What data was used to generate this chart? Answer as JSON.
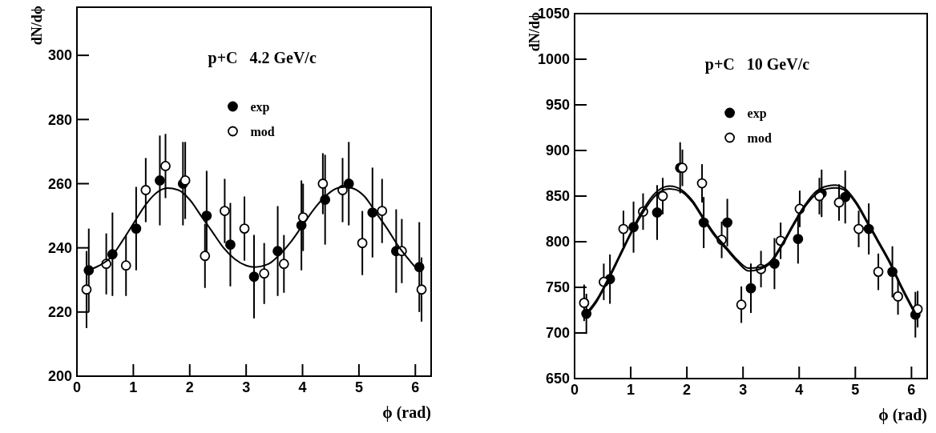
{
  "chart_data": [
    {
      "type": "scatter",
      "title": "p+C   4.2 GeV/c",
      "xlabel": "ϕ (rad)",
      "ylabel": "dN/dϕ",
      "xlim": [
        0,
        6.28
      ],
      "xticks": [
        0,
        1,
        2,
        3,
        4,
        5,
        6
      ],
      "ylim": [
        200,
        315
      ],
      "yticks": [
        200,
        220,
        240,
        260,
        280,
        300
      ],
      "legend": "top",
      "marker": "circle",
      "grid": false,
      "series": [
        {
          "name": "exp",
          "color": "#000000",
          "x": [
            0.21,
            0.63,
            1.05,
            1.47,
            1.88,
            2.3,
            2.72,
            3.14,
            3.56,
            3.98,
            4.4,
            4.82,
            5.24,
            5.66,
            6.07
          ],
          "values": [
            233,
            238,
            246,
            261,
            260,
            250,
            241,
            231,
            239,
            247,
            255,
            260,
            251,
            239,
            234
          ],
          "errors": [
            13,
            13,
            13,
            14,
            13,
            14,
            13,
            13,
            14,
            14,
            14,
            13,
            14,
            13,
            14
          ]
        },
        {
          "name": "mod",
          "color": "#ffffff",
          "x": [
            0.17,
            0.52,
            0.87,
            1.22,
            1.57,
            1.92,
            2.27,
            2.62,
            2.97,
            3.32,
            3.67,
            4.01,
            4.36,
            4.71,
            5.06,
            5.41,
            5.76,
            6.11
          ],
          "values": [
            227,
            235,
            234.5,
            258,
            265.5,
            261,
            237.5,
            251.5,
            246,
            232,
            235,
            249.5,
            260,
            258,
            241.5,
            251.5,
            239,
            227
          ],
          "errors": [
            12,
            9.5,
            9.5,
            10,
            10,
            12,
            10,
            10,
            10,
            9.5,
            9,
            10.5,
            9.5,
            10,
            10,
            10,
            10,
            10
          ]
        },
        {
          "type": "line",
          "color": "#000000",
          "marker": "none",
          "x": [
            0.2,
            0.4,
            0.6,
            0.8,
            1.0,
            1.2,
            1.4,
            1.6,
            1.8,
            2.0,
            2.2,
            2.4,
            2.6,
            2.8,
            3.0,
            3.15,
            3.4,
            3.6,
            3.8,
            4.0,
            4.2,
            4.4,
            4.6,
            4.75,
            4.9,
            5.1,
            5.3,
            5.5,
            5.7,
            5.9,
            6.07
          ],
          "values": [
            233,
            234.5,
            237,
            242,
            247.5,
            253,
            257,
            258.6,
            258,
            255,
            250,
            245,
            240,
            236.5,
            234.5,
            234,
            235,
            238,
            242,
            247,
            252,
            256,
            258.5,
            259,
            258.5,
            256,
            251,
            246,
            240.5,
            236,
            232.5
          ]
        }
      ]
    },
    {
      "type": "scatter",
      "title": "p+C   10 GeV/c",
      "xlabel": "ϕ (rad)",
      "ylabel": "dN/dϕ",
      "xlim": [
        0,
        6.28
      ],
      "xticks": [
        0,
        1,
        2,
        3,
        4,
        5,
        6
      ],
      "ylim": [
        650,
        1050
      ],
      "yticks": [
        650,
        700,
        750,
        800,
        850,
        900,
        950,
        1000,
        1050
      ],
      "legend": "top",
      "marker": "circle",
      "grid": false,
      "series": [
        {
          "name": "exp",
          "color": "#000000",
          "x": [
            0.21,
            0.63,
            1.05,
            1.47,
            1.88,
            2.3,
            2.72,
            3.14,
            3.56,
            3.98,
            4.4,
            4.82,
            5.24,
            5.66,
            6.07
          ],
          "values": [
            721,
            759,
            816,
            832,
            881,
            821,
            821,
            749,
            776,
            803,
            853,
            849,
            814,
            767,
            720
          ],
          "errors": [
            22,
            27,
            28,
            30,
            28,
            28,
            26,
            27,
            28,
            27,
            26,
            29,
            28,
            28,
            25
          ]
        },
        {
          "name": "mod",
          "color": "#ffffff",
          "x": [
            0.17,
            0.52,
            0.87,
            1.22,
            1.57,
            1.92,
            2.27,
            2.62,
            2.97,
            3.32,
            3.67,
            4.01,
            4.36,
            4.71,
            5.06,
            5.41,
            5.76,
            6.11
          ],
          "values": [
            733,
            756,
            814,
            833,
            850,
            881,
            864,
            802,
            731,
            770,
            801,
            836,
            850,
            843,
            814,
            767,
            740,
            726
          ],
          "errors": [
            20,
            20,
            20,
            20,
            20,
            20,
            21,
            20,
            20,
            20,
            20,
            20,
            20,
            20,
            20,
            20,
            20,
            20
          ]
        },
        {
          "type": "line",
          "color": "#000000",
          "marker": "none",
          "x": [
            0.2,
            0.4,
            0.6,
            0.8,
            1.0,
            1.2,
            1.4,
            1.6,
            1.7,
            1.9,
            2.1,
            2.3,
            2.5,
            2.7,
            2.9,
            3.1,
            3.3,
            3.5,
            3.7,
            3.9,
            4.1,
            4.3,
            4.5,
            4.65,
            4.8,
            5.0,
            5.2,
            5.4,
            5.6,
            5.8,
            6.07
          ],
          "values": [
            719,
            735,
            758,
            783,
            808,
            830,
            848,
            857,
            858,
            855,
            843,
            824,
            806,
            792,
            778,
            768,
            770,
            777,
            796,
            818,
            838,
            852,
            858,
            859,
            857,
            843,
            822,
            800,
            778,
            752,
            720
          ]
        },
        {
          "type": "line",
          "color": "#000000",
          "marker": "none",
          "x": [
            0.2,
            0.4,
            0.6,
            0.8,
            1.0,
            1.2,
            1.4,
            1.6,
            1.7,
            1.9,
            2.1,
            2.3,
            2.5,
            2.7,
            2.9,
            3.1,
            3.3,
            3.5,
            3.7,
            3.9,
            4.1,
            4.3,
            4.5,
            4.65,
            4.8,
            5.0,
            5.2,
            5.4,
            5.6,
            5.8,
            6.07
          ],
          "values": [
            721,
            737,
            760,
            785,
            810,
            833,
            851,
            860,
            861,
            857,
            845,
            826,
            808,
            794,
            780,
            771,
            772,
            779,
            798,
            820,
            840,
            855,
            861,
            862,
            859,
            845,
            824,
            802,
            780,
            754,
            722
          ]
        }
      ]
    }
  ]
}
